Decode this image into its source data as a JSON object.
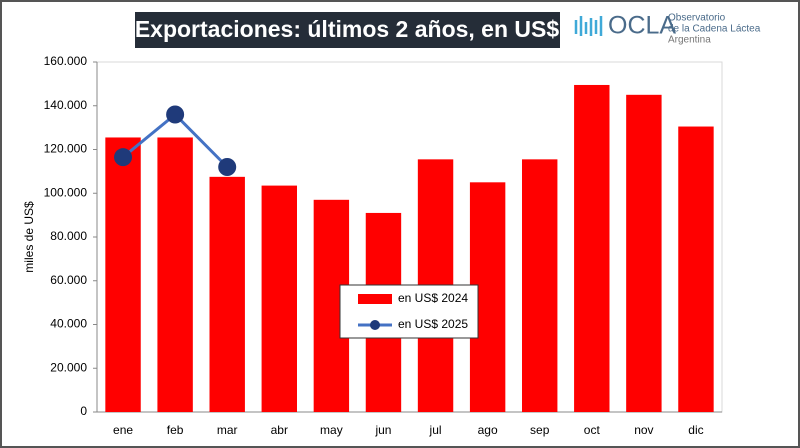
{
  "logo": {
    "name": "OCLA",
    "lines": [
      "Observatorio",
      "de la Cadena Láctea",
      "Argentina"
    ]
  },
  "chart_data": {
    "type": "bar",
    "title": "Exportaciones: últimos 2 años, en US$",
    "y_label": "miles de US$",
    "categories": [
      "ene",
      "feb",
      "mar",
      "abr",
      "may",
      "jun",
      "jul",
      "ago",
      "sep",
      "oct",
      "nov",
      "dic"
    ],
    "series": [
      {
        "name": "en US$ 2024",
        "type": "bar",
        "color": "#ff0000",
        "values": [
          125500,
          125500,
          107500,
          103500,
          97000,
          91000,
          115500,
          105000,
          115500,
          149500,
          145000,
          130500
        ]
      },
      {
        "name": "en US$ 2025",
        "type": "line",
        "color": "#4472c4",
        "marker_color": "#1f3a7a",
        "values": [
          116500,
          136000,
          112000,
          null,
          null,
          null,
          null,
          null,
          null,
          null,
          null,
          null
        ]
      }
    ],
    "ylim": [
      0,
      160000
    ],
    "yticks": [
      0,
      {
        "value": 20000,
        "label": "20.000"
      },
      {
        "value": 40000,
        "label": "40.000"
      },
      {
        "value": 60000,
        "label": "60.000"
      },
      {
        "value": 80000,
        "label": "80.000"
      },
      {
        "value": 100000,
        "label": "100.000"
      },
      {
        "value": 120000,
        "label": "120.000"
      },
      {
        "value": 140000,
        "label": "140.000"
      },
      {
        "value": 160000,
        "label": "160.000"
      }
    ],
    "grid": false,
    "legend": "center"
  }
}
